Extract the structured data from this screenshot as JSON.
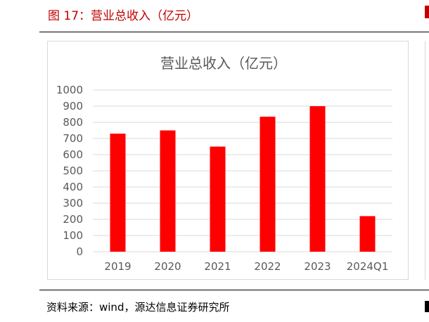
{
  "figure": {
    "title": "图 17：营业总收入（亿元）",
    "source": "资料来源：wind，源达信息证券研究所"
  },
  "colors": {
    "title": "#c00000",
    "bar": "#ff0000",
    "grid": "#d9d9d9",
    "tick_text": "#595959"
  },
  "chart_data": {
    "type": "bar",
    "title": "营业总收入（亿元）",
    "categories": [
      "2019",
      "2020",
      "2021",
      "2022",
      "2023",
      "2024Q1"
    ],
    "values": [
      730,
      750,
      650,
      835,
      900,
      220
    ],
    "yticks": [
      0,
      100,
      200,
      300,
      400,
      500,
      600,
      700,
      800,
      900,
      1000
    ],
    "ylim": [
      0,
      1000
    ],
    "grid": true
  }
}
